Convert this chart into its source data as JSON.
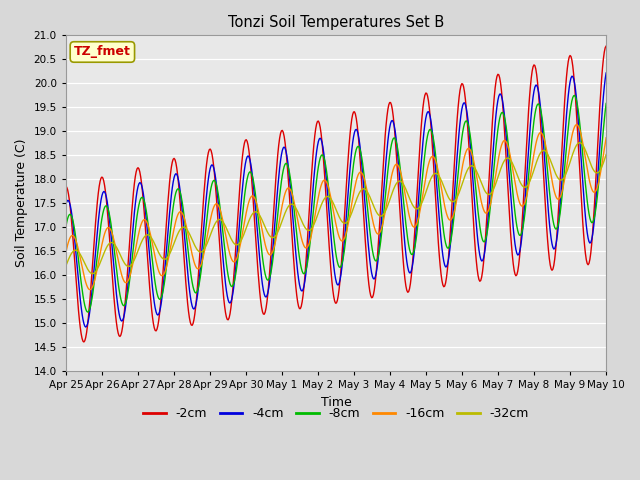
{
  "title": "Tonzi Soil Temperatures Set B",
  "xlabel": "Time",
  "ylabel": "Soil Temperature (C)",
  "ylim": [
    14.0,
    21.0
  ],
  "yticks": [
    14.0,
    14.5,
    15.0,
    15.5,
    16.0,
    16.5,
    17.0,
    17.5,
    18.0,
    18.5,
    19.0,
    19.5,
    20.0,
    20.5,
    21.0
  ],
  "legend_labels": [
    "-2cm",
    "-4cm",
    "-8cm",
    "-16cm",
    "-32cm"
  ],
  "legend_colors": [
    "#dd0000",
    "#0000dd",
    "#00bb00",
    "#ff8800",
    "#bbbb00"
  ],
  "annotation_text": "TZ_fmet",
  "annotation_color": "#cc0000",
  "annotation_bg": "#ffffcc",
  "plot_bg": "#e8e8e8",
  "grid_color": "#ffffff",
  "xtick_labels": [
    "Apr 25",
    "Apr 26",
    "Apr 27",
    "Apr 28",
    "Apr 29",
    "Apr 30",
    "May 1",
    "May 2",
    "May 3",
    "May 4",
    "May 5",
    "May 6",
    "May 7",
    "May 8",
    "May 9",
    "May 10"
  ],
  "xtick_positions": [
    0,
    1,
    2,
    3,
    4,
    5,
    6,
    7,
    8,
    9,
    10,
    11,
    12,
    13,
    14,
    15
  ]
}
